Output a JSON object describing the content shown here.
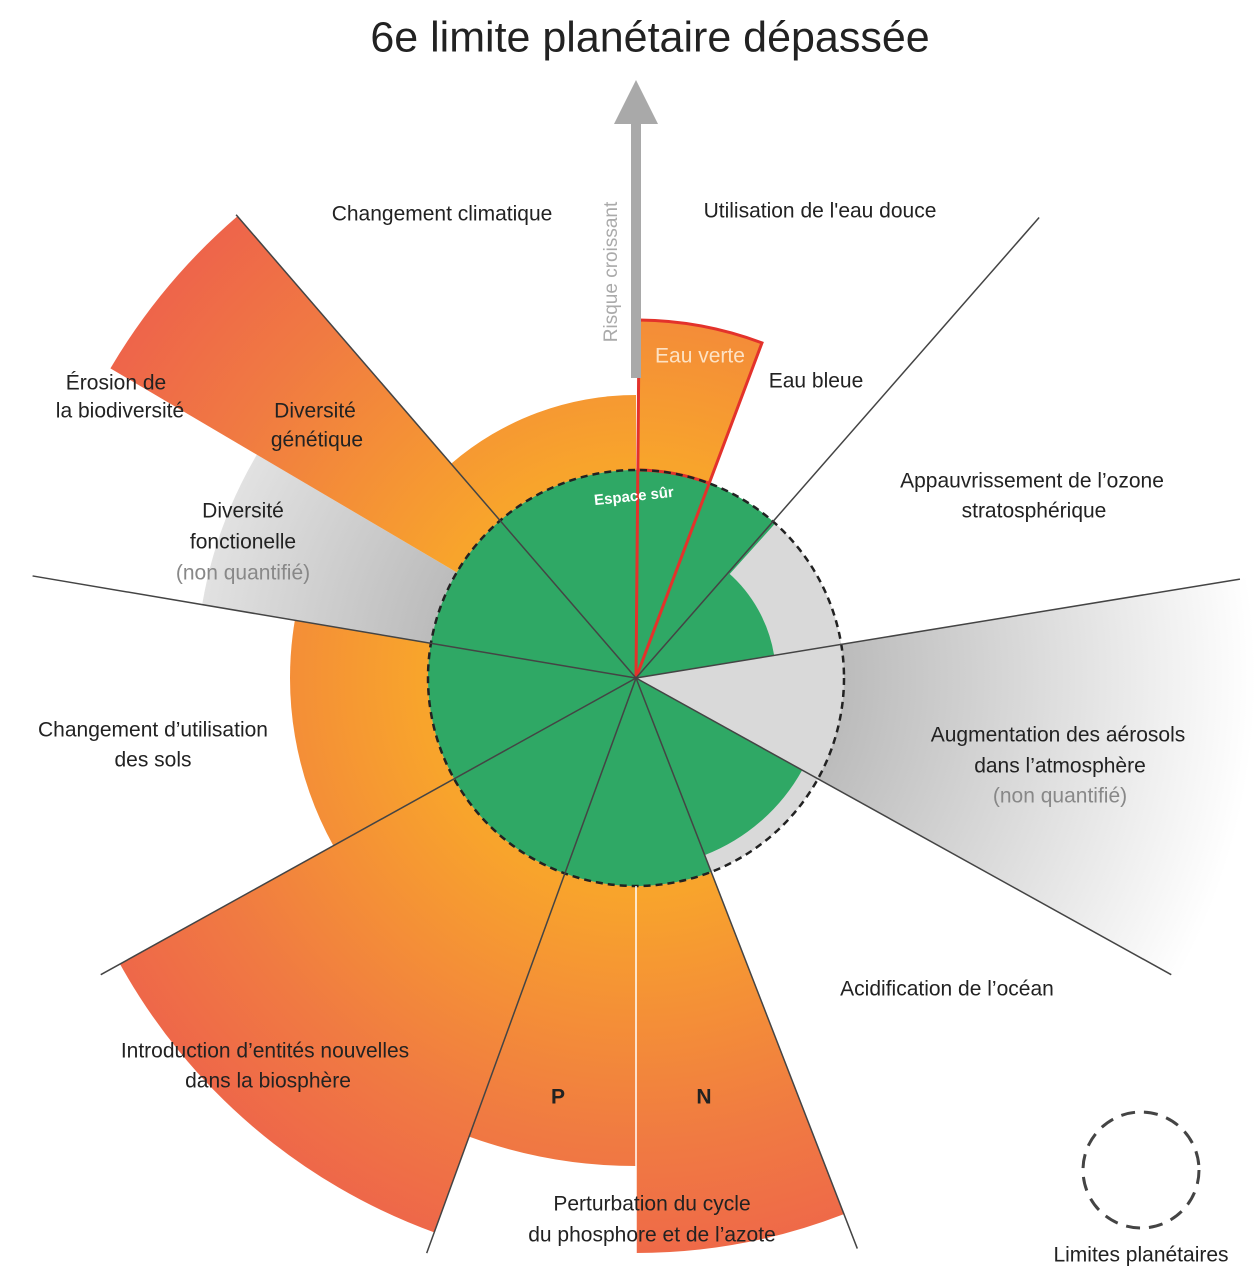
{
  "title": "6e limite planétaire dépassée",
  "arrow_label": "Risque croissant",
  "safe_space": "Espace sûr",
  "labels": {
    "climate": "Changement climatique",
    "freshwater": "Utilisation de l'eau douce",
    "green_water": "Eau verte",
    "blue_water": "Eau bleue",
    "biodiversity": [
      "Érosion de",
      "la biodiversité"
    ],
    "genetic": [
      "Diversité",
      "génétique"
    ],
    "functional": [
      "Diversité",
      "fonctionelle",
      "(non quantifié)"
    ],
    "ozone": [
      "Appauvrissement de l’ozone",
      "stratosphérique"
    ],
    "land_use": [
      "Changement d’utilisation",
      "des sols"
    ],
    "aerosols": [
      "Augmentation des aérosols",
      "dans l’atmosphère",
      "(non quantifié)"
    ],
    "ocean": "Acidification de l’océan",
    "novel": [
      "Introduction d’entités nouvelles",
      "dans la biosphère"
    ],
    "phosphorus": "P",
    "nitrogen": "N",
    "cycles": [
      "Perturbation du cycle",
      "du phosphore et de l’azote"
    ]
  },
  "legend": "Limites planétaires"
}
